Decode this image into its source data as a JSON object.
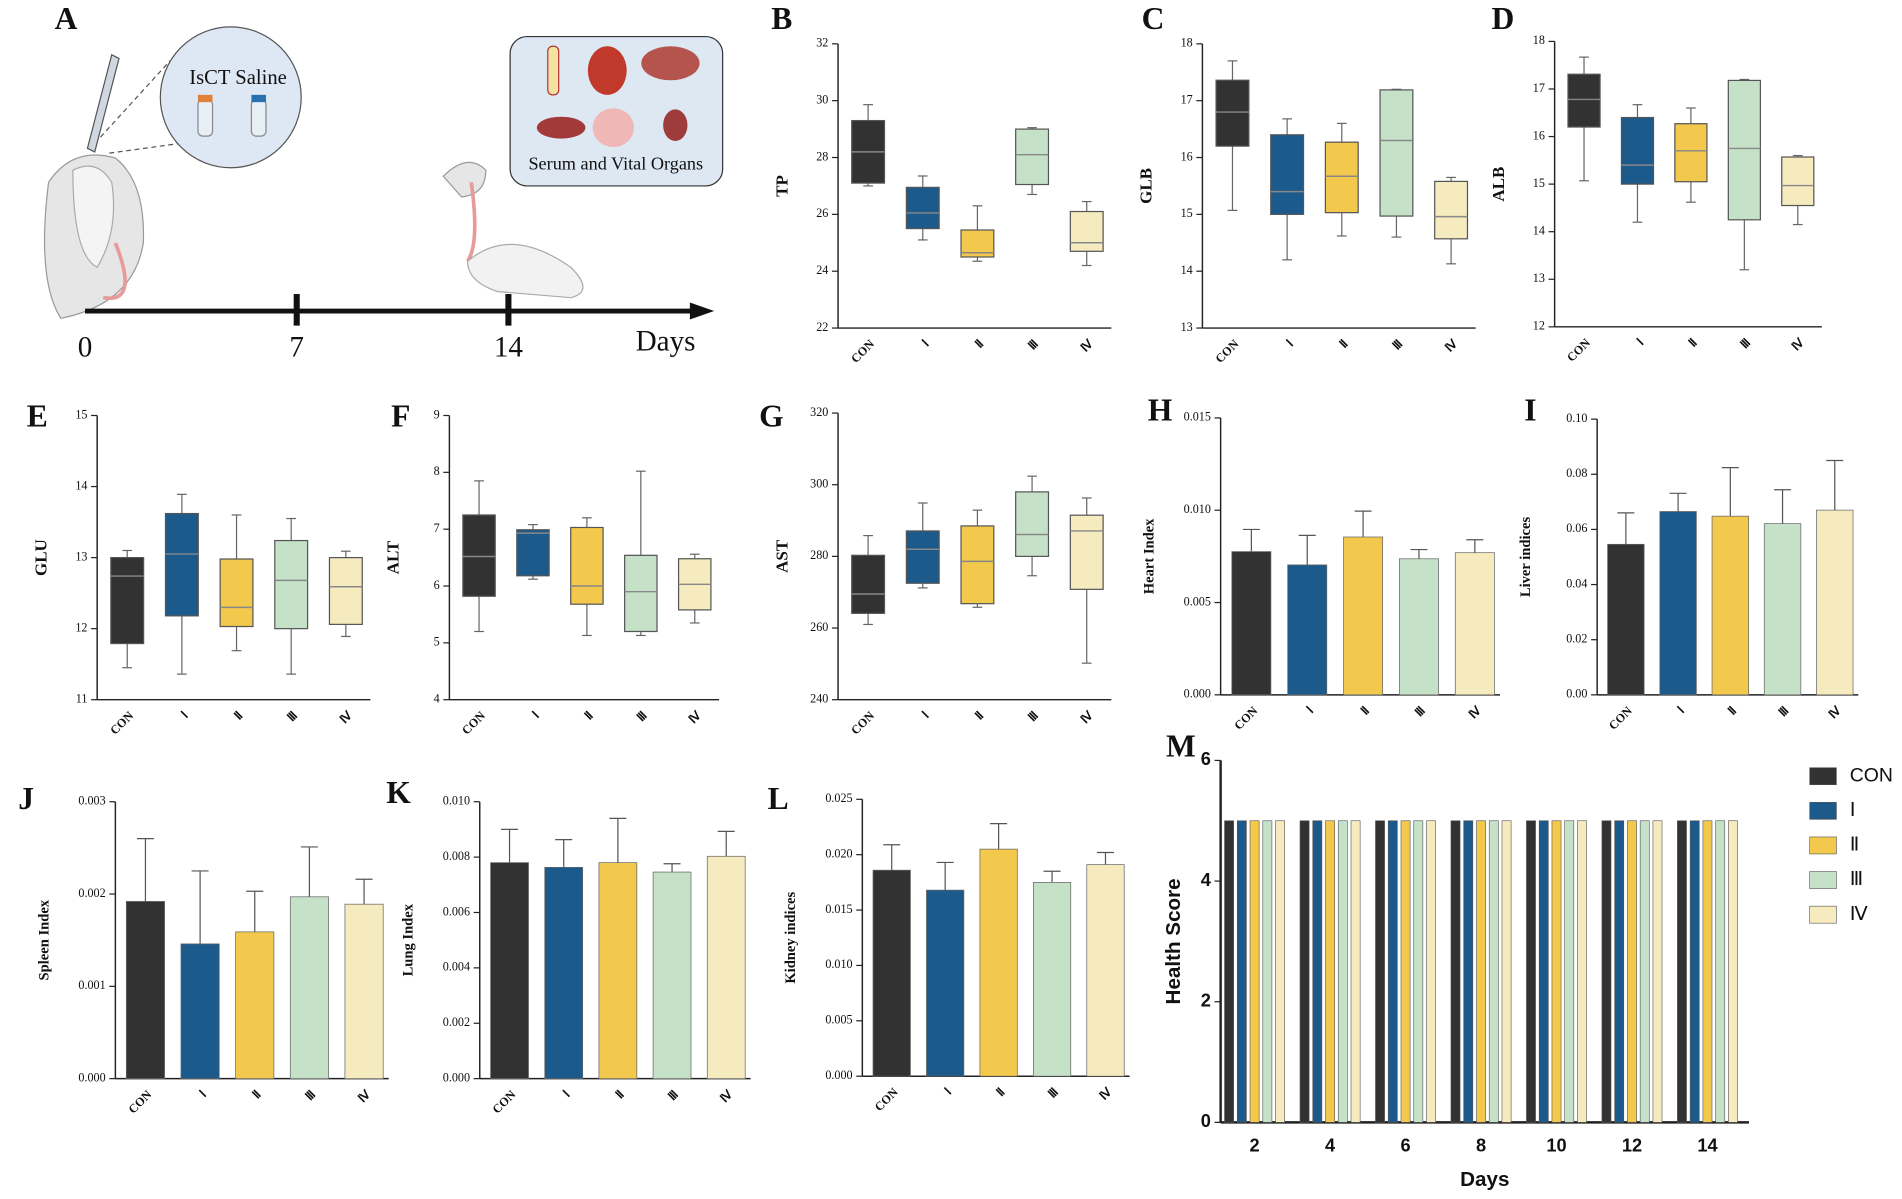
{
  "schematic": {
    "panel": "A",
    "syringe_label": "IsCT Saline",
    "organs_label": "Serum and Vital Organs",
    "timeline_ticks": [
      0,
      7,
      14
    ],
    "timeline_label": "Days"
  },
  "chart_data": [
    {
      "panel": "B",
      "type": "box",
      "ylabel": "TP",
      "categories": [
        "CON",
        "Ⅰ",
        "Ⅱ",
        "Ⅲ",
        "Ⅳ"
      ],
      "colors": [
        "#323232",
        "#1c5a8c",
        "#f2c94c",
        "#c5e2c8",
        "#f5ebbe"
      ],
      "values": [
        {
          "min": 27.0,
          "q1": 27.1,
          "median": 28.2,
          "q3": 29.3,
          "max": 29.86
        },
        {
          "min": 25.1,
          "q1": 25.5,
          "median": 26.05,
          "q3": 26.95,
          "max": 27.35
        },
        {
          "min": 24.35,
          "q1": 24.5,
          "median": 24.65,
          "q3": 25.45,
          "max": 26.3
        },
        {
          "min": 26.7,
          "q1": 27.05,
          "median": 28.1,
          "q3": 29.0,
          "max": 29.05
        },
        {
          "min": 24.2,
          "q1": 24.7,
          "median": 25.0,
          "q3": 26.1,
          "max": 26.45
        }
      ],
      "ylim": [
        22,
        32
      ],
      "yticks": [
        22,
        24,
        26,
        28,
        30,
        32
      ]
    },
    {
      "panel": "C",
      "type": "box",
      "ylabel": "GLB",
      "categories": [
        "CON",
        "Ⅰ",
        "Ⅱ",
        "Ⅲ",
        "Ⅳ"
      ],
      "colors": [
        "#323232",
        "#1c5a8c",
        "#f2c94c",
        "#c5e2c8",
        "#f5ebbe"
      ],
      "values": [
        {
          "min": 15.07,
          "q1": 16.2,
          "median": 16.8,
          "q3": 17.36,
          "max": 17.7
        },
        {
          "min": 14.2,
          "q1": 15.0,
          "median": 15.4,
          "q3": 16.4,
          "max": 16.68
        },
        {
          "min": 14.62,
          "q1": 15.03,
          "median": 15.67,
          "q3": 16.27,
          "max": 16.6
        },
        {
          "min": 14.6,
          "q1": 14.97,
          "median": 16.3,
          "q3": 17.19,
          "max": 17.2
        },
        {
          "min": 14.13,
          "q1": 14.57,
          "median": 14.96,
          "q3": 15.58,
          "max": 15.65
        }
      ],
      "ylim": [
        13,
        18
      ],
      "yticks": [
        13,
        14,
        15,
        16,
        17,
        18
      ]
    },
    {
      "panel": "D",
      "type": "box",
      "ylabel": "ALB",
      "categories": [
        "CON",
        "Ⅰ",
        "Ⅱ",
        "Ⅲ",
        "Ⅳ"
      ],
      "colors": [
        "#323232",
        "#1c5a8c",
        "#f2c94c",
        "#c5e2c8",
        "#f5ebbe"
      ],
      "values": [
        {
          "min": 15.07,
          "q1": 16.2,
          "median": 16.78,
          "q3": 17.31,
          "max": 17.67
        },
        {
          "min": 14.2,
          "q1": 15.0,
          "median": 15.4,
          "q3": 16.4,
          "max": 16.67
        },
        {
          "min": 14.62,
          "q1": 15.05,
          "median": 15.7,
          "q3": 16.27,
          "max": 16.6
        },
        {
          "min": 13.2,
          "q1": 14.25,
          "median": 15.75,
          "q3": 17.18,
          "max": 17.2
        },
        {
          "min": 14.15,
          "q1": 14.55,
          "median": 14.97,
          "q3": 15.57,
          "max": 15.6
        }
      ],
      "ylim": [
        12,
        18
      ],
      "yticks": [
        12,
        13,
        14,
        15,
        16,
        17,
        18
      ]
    },
    {
      "panel": "E",
      "type": "box",
      "ylabel": "GLU",
      "categories": [
        "CON",
        "Ⅰ",
        "Ⅱ",
        "Ⅲ",
        "Ⅳ"
      ],
      "colors": [
        "#323232",
        "#1c5a8c",
        "#f2c94c",
        "#c5e2c8",
        "#f5ebbe"
      ],
      "values": [
        {
          "min": 11.45,
          "q1": 11.79,
          "median": 12.74,
          "q3": 13.0,
          "max": 13.1
        },
        {
          "min": 11.36,
          "q1": 12.18,
          "median": 13.05,
          "q3": 13.62,
          "max": 13.89
        },
        {
          "min": 11.69,
          "q1": 12.03,
          "median": 12.3,
          "q3": 12.98,
          "max": 13.6
        },
        {
          "min": 11.36,
          "q1": 12.0,
          "median": 12.68,
          "q3": 13.24,
          "max": 13.55
        },
        {
          "min": 11.89,
          "q1": 12.06,
          "median": 12.59,
          "q3": 13.0,
          "max": 13.09
        }
      ],
      "ylim": [
        11,
        15
      ],
      "yticks": [
        11,
        12,
        13,
        14,
        15
      ]
    },
    {
      "panel": "F",
      "type": "box",
      "ylabel": "ALT",
      "categories": [
        "CON",
        "Ⅰ",
        "Ⅱ",
        "Ⅲ",
        "Ⅳ"
      ],
      "colors": [
        "#323232",
        "#1c5a8c",
        "#f2c94c",
        "#c5e2c8",
        "#f5ebbe"
      ],
      "values": [
        {
          "min": 5.2,
          "q1": 5.82,
          "median": 6.52,
          "q3": 7.25,
          "max": 7.85
        },
        {
          "min": 6.12,
          "q1": 6.18,
          "median": 6.93,
          "q3": 6.99,
          "max": 7.08
        },
        {
          "min": 5.13,
          "q1": 5.68,
          "median": 6.0,
          "q3": 7.03,
          "max": 7.2
        },
        {
          "min": 5.13,
          "q1": 5.2,
          "median": 5.9,
          "q3": 6.54,
          "max": 8.02
        },
        {
          "min": 5.35,
          "q1": 5.58,
          "median": 6.03,
          "q3": 6.48,
          "max": 6.56
        }
      ],
      "ylim": [
        4,
        9
      ],
      "yticks": [
        4,
        5,
        6,
        7,
        8,
        9
      ]
    },
    {
      "panel": "G",
      "type": "box",
      "ylabel": "AST",
      "categories": [
        "CON",
        "Ⅰ",
        "Ⅱ",
        "Ⅲ",
        "Ⅳ"
      ],
      "colors": [
        "#323232",
        "#1c5a8c",
        "#f2c94c",
        "#c5e2c8",
        "#f5ebbe"
      ],
      "values": [
        {
          "min": 261,
          "q1": 264.1,
          "median": 269.5,
          "q3": 280.3,
          "max": 285.8
        },
        {
          "min": 271.2,
          "q1": 272.5,
          "median": 282.0,
          "q3": 287.1,
          "max": 294.9
        },
        {
          "min": 265.8,
          "q1": 266.8,
          "median": 278.6,
          "q3": 288.5,
          "max": 292.9
        },
        {
          "min": 274.6,
          "q1": 280,
          "median": 286.1,
          "q3": 298,
          "max": 302.4
        },
        {
          "min": 250.2,
          "q1": 270.8,
          "median": 287.1,
          "q3": 291.5,
          "max": 296.3
        }
      ],
      "ylim": [
        240,
        320
      ],
      "yticks": [
        240,
        260,
        280,
        300,
        320
      ]
    },
    {
      "panel": "H",
      "type": "bar",
      "ylabel": "Heart Index",
      "categories": [
        "CON",
        "Ⅰ",
        "Ⅱ",
        "Ⅲ",
        "Ⅳ"
      ],
      "colors": [
        "#323232",
        "#1c5a8c",
        "#f2c94c",
        "#c5e2c8",
        "#f5ebbe"
      ],
      "values": [
        0.00776,
        0.00704,
        0.00855,
        0.00737,
        0.0077
      ],
      "errors": [
        0.0012,
        0.0016,
        0.0014,
        0.0005,
        0.0007
      ],
      "ylim": [
        0,
        0.015
      ],
      "yticks": [
        {
          "value": 0,
          "label": "0.000"
        },
        {
          "value": 0.005,
          "label": "0.005"
        },
        {
          "value": 0.01,
          "label": "0.010"
        },
        {
          "value": 0.015,
          "label": "0.015"
        }
      ]
    },
    {
      "panel": "I",
      "type": "bar",
      "ylabel": "Liver indices",
      "categories": [
        "CON",
        "Ⅰ",
        "Ⅱ",
        "Ⅲ",
        "Ⅳ"
      ],
      "colors": [
        "#323232",
        "#1c5a8c",
        "#f2c94c",
        "#c5e2c8",
        "#f5ebbe"
      ],
      "values": [
        0.0546,
        0.0665,
        0.0648,
        0.0621,
        0.067
      ],
      "errors": [
        0.0114,
        0.0066,
        0.0176,
        0.0123,
        0.018
      ],
      "ylim": [
        0,
        0.1
      ],
      "yticks": [
        {
          "value": 0,
          "label": "0.00"
        },
        {
          "value": 0.02,
          "label": "0.02"
        },
        {
          "value": 0.04,
          "label": "0.04"
        },
        {
          "value": 0.06,
          "label": "0.06"
        },
        {
          "value": 0.08,
          "label": "0.08"
        },
        {
          "value": 0.1,
          "label": "0.10"
        }
      ]
    },
    {
      "panel": "J",
      "type": "bar",
      "ylabel": "Spleen Index",
      "categories": [
        "CON",
        "Ⅰ",
        "Ⅱ",
        "Ⅲ",
        "Ⅳ"
      ],
      "colors": [
        "#323232",
        "#1c5a8c",
        "#f2c94c",
        "#c5e2c8",
        "#f5ebbe"
      ],
      "values": [
        0.00192,
        0.00146,
        0.00159,
        0.00197,
        0.00189
      ],
      "errors": [
        0.00068,
        0.00079,
        0.00044,
        0.00054,
        0.00027
      ],
      "ylim": [
        0,
        0.003
      ],
      "yticks": [
        {
          "value": 0,
          "label": "0.000"
        },
        {
          "value": 0.001,
          "label": "0.001"
        },
        {
          "value": 0.002,
          "label": "0.002"
        },
        {
          "value": 0.003,
          "label": "0.003"
        }
      ]
    },
    {
      "panel": "K",
      "type": "bar",
      "ylabel": "Lung Index",
      "categories": [
        "CON",
        "Ⅰ",
        "Ⅱ",
        "Ⅲ",
        "Ⅳ"
      ],
      "colors": [
        "#323232",
        "#1c5a8c",
        "#f2c94c",
        "#c5e2c8",
        "#f5ebbe"
      ],
      "values": [
        0.0078,
        0.00763,
        0.0078,
        0.00746,
        0.00803
      ],
      "errors": [
        0.0012,
        0.001,
        0.0016,
        0.0003,
        0.0009
      ],
      "ylim": [
        0,
        0.01
      ],
      "yticks": [
        {
          "value": 0,
          "label": "0.000"
        },
        {
          "value": 0.002,
          "label": "0.002"
        },
        {
          "value": 0.004,
          "label": "0.004"
        },
        {
          "value": 0.006,
          "label": "0.006"
        },
        {
          "value": 0.008,
          "label": "0.008"
        },
        {
          "value": 0.01,
          "label": "0.010"
        }
      ]
    },
    {
      "panel": "L",
      "type": "bar",
      "ylabel": "Kidney indices",
      "categories": [
        "CON",
        "Ⅰ",
        "Ⅱ",
        "Ⅲ",
        "Ⅳ"
      ],
      "colors": [
        "#323232",
        "#1c5a8c",
        "#f2c94c",
        "#c5e2c8",
        "#f5ebbe"
      ],
      "values": [
        0.0186,
        0.0168,
        0.0205,
        0.0175,
        0.0191
      ],
      "errors": [
        0.0023,
        0.0025,
        0.0023,
        0.001,
        0.0011
      ],
      "ylim": [
        0,
        0.025
      ],
      "yticks": [
        {
          "value": 0,
          "label": "0.000"
        },
        {
          "value": 0.005,
          "label": "0.005"
        },
        {
          "value": 0.01,
          "label": "0.010"
        },
        {
          "value": 0.015,
          "label": "0.015"
        },
        {
          "value": 0.02,
          "label": "0.020"
        },
        {
          "value": 0.025,
          "label": "0.025"
        }
      ]
    },
    {
      "panel": "M",
      "type": "grouped_bar",
      "ylabel": "Health Score",
      "xlabel": "Days",
      "categories": [
        2,
        4,
        6,
        8,
        10,
        12,
        14
      ],
      "series": [
        {
          "name": "CON",
          "color": "#323232",
          "values": [
            5,
            5,
            5,
            5,
            5,
            5,
            5
          ]
        },
        {
          "name": "Ⅰ",
          "color": "#1c5a8c",
          "values": [
            5,
            5,
            5,
            5,
            5,
            5,
            5
          ]
        },
        {
          "name": "Ⅱ",
          "color": "#f2c94c",
          "values": [
            5,
            5,
            5,
            5,
            5,
            5,
            5
          ]
        },
        {
          "name": "Ⅲ",
          "color": "#c5e2c8",
          "values": [
            5,
            5,
            5,
            5,
            5,
            5,
            5
          ]
        },
        {
          "name": "Ⅳ",
          "color": "#f5ebbe",
          "values": [
            5,
            5,
            5,
            5,
            5,
            5,
            5
          ]
        }
      ],
      "ylim": [
        0,
        6
      ],
      "yticks": [
        0,
        2,
        4,
        6
      ],
      "legend": "right"
    }
  ]
}
